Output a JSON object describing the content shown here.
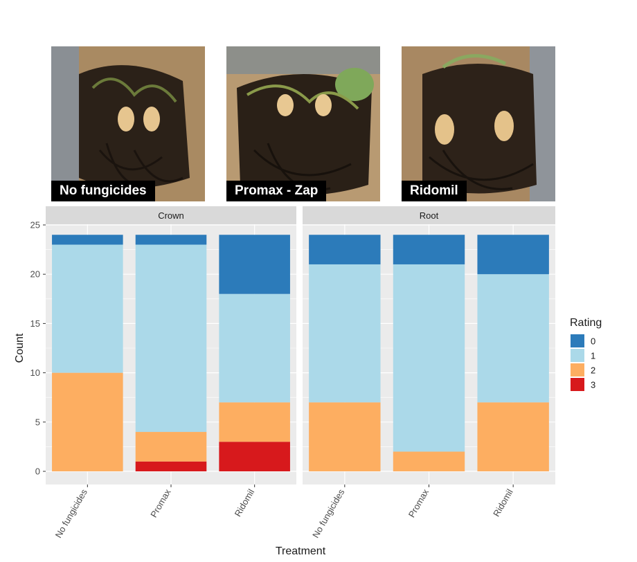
{
  "photos": [
    {
      "label": "No fungicides",
      "icon": "crown-root-photo"
    },
    {
      "label": "Promax - Zap",
      "icon": "crown-root-photo"
    },
    {
      "label": "Ridomil",
      "icon": "crown-root-photo"
    }
  ],
  "colors": {
    "rating_0": "#2C7BBA",
    "rating_1": "#ABD9E9",
    "rating_2": "#FDAE61",
    "rating_3": "#D7191C",
    "panel_bg": "#EBEBEB",
    "strip_bg": "#D9D9D9",
    "grid": "#FFFFFF"
  },
  "chart_data": {
    "type": "bar",
    "stacked": true,
    "xlabel": "Treatment",
    "ylabel": "Count",
    "ylim": [
      0,
      25
    ],
    "yticks": [
      0,
      5,
      10,
      15,
      20,
      25
    ],
    "legend": {
      "title": "Rating",
      "position": "right"
    },
    "categories": [
      "No fungicides",
      "Promax",
      "Ridomil"
    ],
    "facets": [
      {
        "name": "Crown",
        "series": [
          {
            "name": "3",
            "values": [
              0,
              1,
              3
            ]
          },
          {
            "name": "2",
            "values": [
              10,
              3,
              4
            ]
          },
          {
            "name": "1",
            "values": [
              13,
              19,
              11
            ]
          },
          {
            "name": "0",
            "values": [
              1,
              1,
              6
            ]
          }
        ]
      },
      {
        "name": "Root",
        "series": [
          {
            "name": "3",
            "values": [
              0,
              0,
              0
            ]
          },
          {
            "name": "2",
            "values": [
              7,
              2,
              7
            ]
          },
          {
            "name": "1",
            "values": [
              14,
              19,
              13
            ]
          },
          {
            "name": "0",
            "values": [
              3,
              3,
              4
            ]
          }
        ]
      }
    ]
  }
}
